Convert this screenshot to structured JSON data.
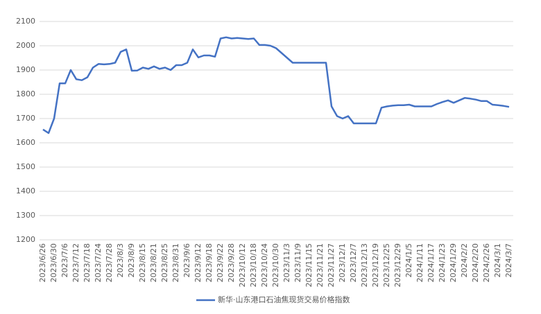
{
  "chart_data": {
    "type": "line",
    "categories": [
      "2023/6/26",
      null,
      "2023/6/30",
      null,
      "2023/7/6",
      null,
      "2023/7/12",
      null,
      "2023/7/18",
      null,
      "2023/7/24",
      null,
      "2023/7/28",
      null,
      "2023/8/3",
      null,
      "2023/8/9",
      null,
      "2023/8/15",
      null,
      "2023/8/21",
      null,
      "2023/8/25",
      null,
      "2023/8/31",
      null,
      "2023/9/6",
      null,
      "2023/9/12",
      null,
      "2023/9/18",
      null,
      "2023/9/22",
      null,
      "2023/9/28",
      null,
      "2023/10/12",
      null,
      "2023/10/18",
      null,
      "2023/10/24",
      null,
      "2023/10/30",
      null,
      "2023/11/3",
      null,
      "2023/11/9",
      null,
      "2023/11/15",
      null,
      "2023/11/21",
      null,
      "2023/11/27",
      null,
      "2023/12/1",
      null,
      "2023/12/7",
      null,
      "2023/12/13",
      null,
      "2023/12/19",
      null,
      "2023/12/25",
      null,
      "2023/12/29",
      null,
      "2024/1/5",
      null,
      "2024/1/11",
      null,
      "2024/1/17",
      null,
      "2024/1/23",
      null,
      "2024/1/29",
      null,
      "2024/2/2",
      null,
      "2024/2/20",
      null,
      "2024/2/26",
      null,
      "2024/3/1",
      null,
      "2024/3/7"
    ],
    "series": [
      {
        "name": "新华·山东港口石油焦现货交易价格指数",
        "color": "#4472c4",
        "values": [
          1655,
          1640,
          1700,
          1845,
          1845,
          1900,
          1862,
          1858,
          1870,
          1910,
          1925,
          1923,
          1925,
          1930,
          1975,
          1985,
          1897,
          1898,
          1910,
          1905,
          1915,
          1905,
          1910,
          1900,
          1920,
          1920,
          1930,
          1985,
          1952,
          1960,
          1960,
          1955,
          2030,
          2035,
          2030,
          2032,
          2030,
          2028,
          2030,
          2003,
          2003,
          2000,
          1990,
          1970,
          1950,
          1930,
          1930,
          1930,
          1930,
          1930,
          1930,
          1930,
          1750,
          1710,
          1700,
          1710,
          1680,
          1680,
          1680,
          1680,
          1680,
          1745,
          1750,
          1753,
          1755,
          1755,
          1757,
          1750,
          1750,
          1750,
          1750,
          1760,
          1768,
          1775,
          1765,
          1775,
          1785,
          1782,
          1778,
          1772,
          1772,
          1757,
          1755,
          1752,
          1748
        ]
      }
    ],
    "ylim": [
      1200,
      2100
    ],
    "yticks": [
      1200,
      1300,
      1400,
      1500,
      1600,
      1700,
      1800,
      1900,
      2000,
      2100
    ],
    "grid": true,
    "legend": "bottom"
  }
}
